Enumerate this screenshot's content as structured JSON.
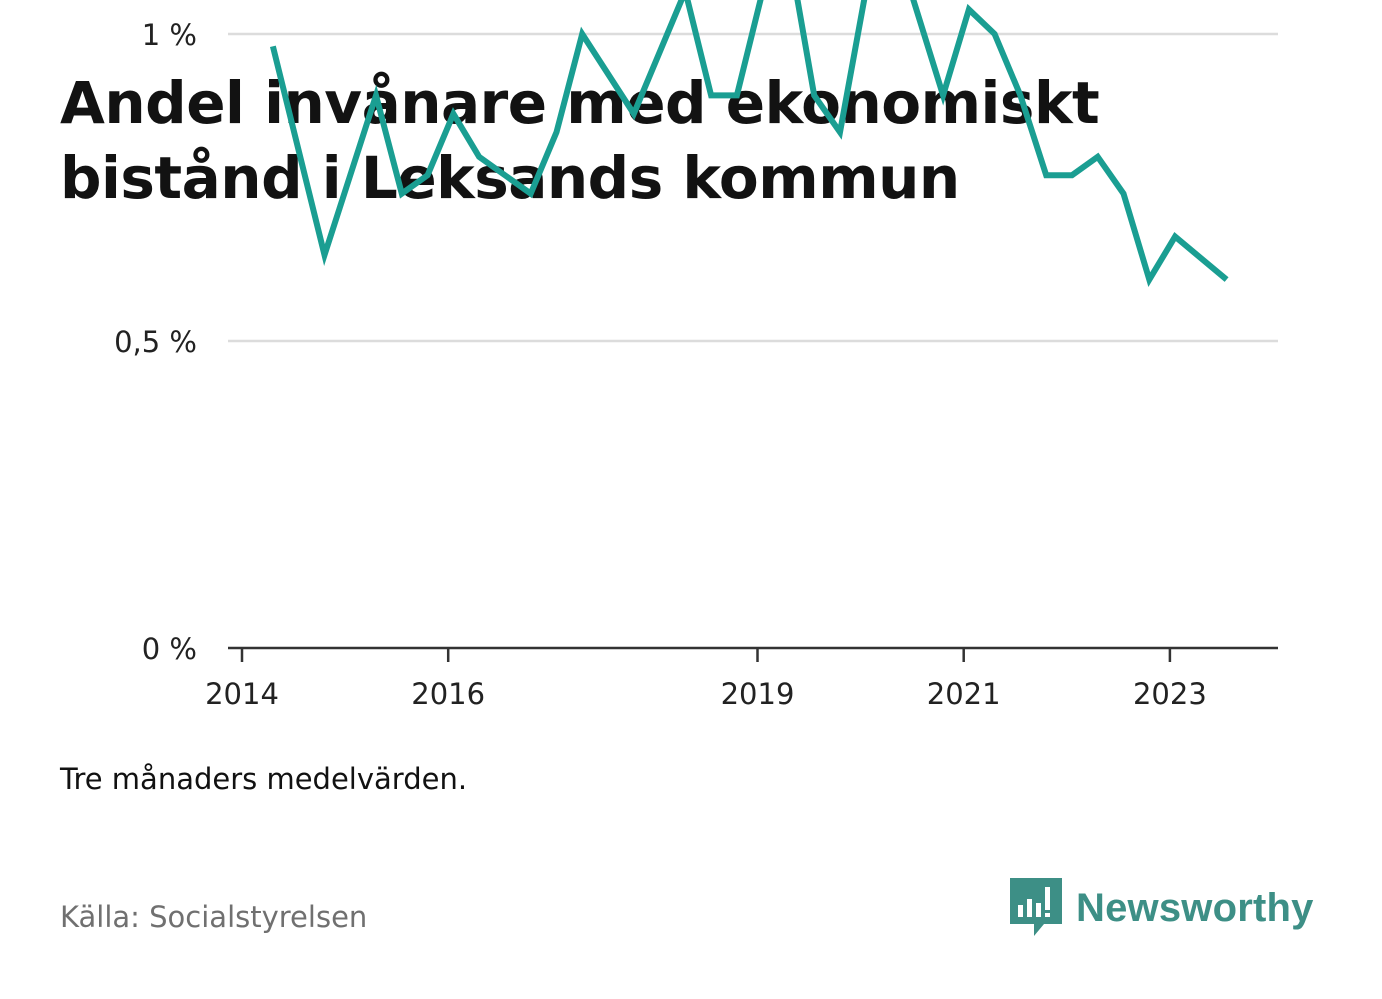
{
  "title": "Andel invånare med ekonomiskt bistånd i Leksands kommun",
  "note": "Tre månaders medelvärden.",
  "source": "Källa: Socialstyrelsen",
  "brand": {
    "name": "Newsworthy",
    "icon": "newsworthy-logo-icon"
  },
  "colors": {
    "line": "#1a9e92",
    "grid": "#dcdcdc",
    "axis": "#333333",
    "brand": "#3d8f86"
  },
  "chart_data": {
    "type": "line",
    "title": "Andel invånare med ekonomiskt bistånd i Leksands kommun",
    "xlabel": "",
    "ylabel": "",
    "y_ticks": [
      {
        "value": 0,
        "label": "0 %"
      },
      {
        "value": 0.5,
        "label": "0,5 %"
      },
      {
        "value": 1,
        "label": "1 %"
      }
    ],
    "x_ticks": [
      {
        "value": 2014.0,
        "label": "2014"
      },
      {
        "value": 2016.0,
        "label": "2016"
      },
      {
        "value": 2019.0,
        "label": "2019"
      },
      {
        "value": 2021.0,
        "label": "2021"
      },
      {
        "value": 2023.0,
        "label": "2023"
      }
    ],
    "xlim": [
      2014.0,
      2024.0
    ],
    "ylim": [
      0,
      1.2
    ],
    "grid": true,
    "series": [
      {
        "points": [
          [
            2014.3,
            0.98
          ],
          [
            2014.8,
            0.64
          ],
          [
            2015.3,
            0.9
          ],
          [
            2015.55,
            0.74
          ],
          [
            2015.8,
            0.77
          ],
          [
            2016.05,
            0.87
          ],
          [
            2016.3,
            0.8
          ],
          [
            2016.8,
            0.74
          ],
          [
            2017.05,
            0.84
          ],
          [
            2017.3,
            1.0
          ],
          [
            2017.8,
            0.87
          ],
          [
            2018.3,
            1.07
          ],
          [
            2018.55,
            0.9
          ],
          [
            2018.8,
            0.9
          ],
          [
            2019.05,
            1.07
          ],
          [
            2019.3,
            1.14
          ],
          [
            2019.55,
            0.9
          ],
          [
            2019.8,
            0.84
          ],
          [
            2020.05,
            1.07
          ],
          [
            2020.3,
            1.17
          ],
          [
            2020.8,
            0.9
          ],
          [
            2021.05,
            1.04
          ],
          [
            2021.3,
            1.0
          ],
          [
            2021.55,
            0.9
          ],
          [
            2021.8,
            0.77
          ],
          [
            2022.05,
            0.77
          ],
          [
            2022.3,
            0.8
          ],
          [
            2022.55,
            0.74
          ],
          [
            2022.8,
            0.6
          ],
          [
            2023.05,
            0.67
          ],
          [
            2023.55,
            0.6
          ]
        ]
      }
    ]
  }
}
